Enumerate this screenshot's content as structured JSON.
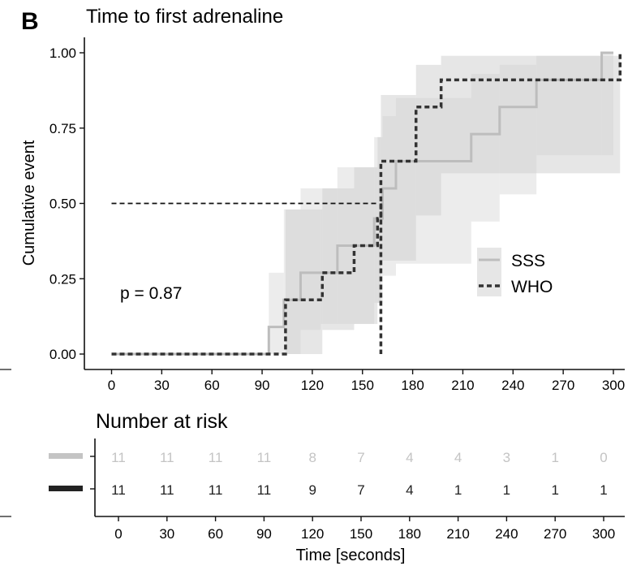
{
  "panel_label": "B",
  "chart_data": {
    "type": "line",
    "title": "Time to first adrenaline",
    "ylabel": "Cumulative event",
    "xlim": [
      -9,
      308
    ],
    "ylim": [
      0,
      1
    ],
    "x_ticks": [
      0,
      30,
      60,
      90,
      120,
      150,
      180,
      210,
      240,
      270,
      300
    ],
    "y_ticks": [
      0.0,
      0.25,
      0.5,
      0.75,
      1.0
    ],
    "y_tick_labels": [
      "0.00",
      "0.25",
      "0.50",
      "0.75",
      "1.00"
    ],
    "annotation": "p = 0.87",
    "median_line": {
      "y": 0.5,
      "x_end": 160
    },
    "legend": {
      "placement": "right",
      "entries": [
        "SSS",
        "WHO"
      ]
    },
    "series": [
      {
        "name": "SSS",
        "color": "#bdbdbd",
        "dash": "solid",
        "steps": [
          [
            0,
            0
          ],
          [
            94,
            0.09
          ],
          [
            103,
            0.18
          ],
          [
            113,
            0.27
          ],
          [
            125,
            0.27
          ],
          [
            135,
            0.36
          ],
          [
            157,
            0.45
          ],
          [
            162,
            0.55
          ],
          [
            170,
            0.64
          ],
          [
            215,
            0.73
          ],
          [
            232,
            0.82
          ],
          [
            254,
            0.91
          ],
          [
            293,
            1.0
          ]
        ],
        "end_x": 300,
        "ci": [
          [
            0,
            0,
            0
          ],
          [
            94,
            0.0,
            0.27
          ],
          [
            103,
            0.0,
            0.48
          ],
          [
            113,
            0.08,
            0.55
          ],
          [
            125,
            0.1,
            0.55
          ],
          [
            135,
            0.1,
            0.62
          ],
          [
            157,
            0.17,
            0.72
          ],
          [
            162,
            0.26,
            0.79
          ],
          [
            170,
            0.3,
            0.85
          ],
          [
            215,
            0.44,
            0.93
          ],
          [
            232,
            0.53,
            0.96
          ],
          [
            254,
            0.66,
            0.99
          ],
          [
            293,
            0.66,
            1.0
          ],
          [
            300,
            0.66,
            1.0
          ]
        ]
      },
      {
        "name": "WHO",
        "color": "#333333",
        "dash": "dashed",
        "steps": [
          [
            0,
            0
          ],
          [
            104,
            0.18
          ],
          [
            119,
            0.18
          ],
          [
            126,
            0.27
          ],
          [
            145,
            0.36
          ],
          [
            159,
            0.45
          ],
          [
            161,
            0.64
          ],
          [
            182,
            0.82
          ],
          [
            197,
            0.91
          ],
          [
            304,
            1.0
          ]
        ],
        "end_x": 304,
        "drop_x": 161,
        "ci": [
          [
            0,
            0,
            0
          ],
          [
            104,
            0.0,
            0.48
          ],
          [
            126,
            0.08,
            0.55
          ],
          [
            145,
            0.1,
            0.62
          ],
          [
            159,
            0.17,
            0.72
          ],
          [
            161,
            0.31,
            0.86
          ],
          [
            182,
            0.46,
            0.96
          ],
          [
            197,
            0.6,
            0.99
          ],
          [
            304,
            0.6,
            1.0
          ]
        ]
      }
    ]
  },
  "risk_table": {
    "title": "Number at risk",
    "xlabel": "Time [seconds]",
    "x_ticks": [
      0,
      30,
      60,
      90,
      120,
      150,
      180,
      210,
      240,
      270,
      300
    ],
    "rows": [
      {
        "name": "SSS",
        "color": "#c4c4c4",
        "values": [
          11,
          11,
          11,
          11,
          8,
          7,
          4,
          4,
          3,
          1,
          0
        ]
      },
      {
        "name": "WHO",
        "color": "#222222",
        "values": [
          11,
          11,
          11,
          11,
          9,
          7,
          4,
          1,
          1,
          1,
          1
        ]
      }
    ]
  }
}
